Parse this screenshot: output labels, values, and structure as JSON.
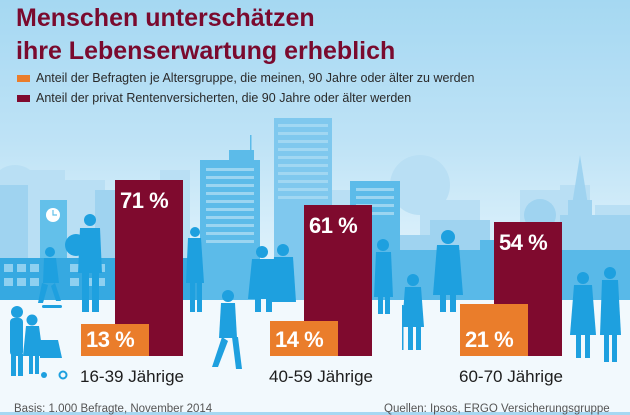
{
  "title": {
    "line1": "Menschen unterschätzen",
    "line2": "ihre Lebenserwartung erheblich"
  },
  "colors": {
    "title": "#7a0a2e",
    "series_believe": "#ea7d2b",
    "series_actual": "#7f0a2e",
    "silhouette": "#1ea0df",
    "silhouette_light": "#8fcdee"
  },
  "chart_data": {
    "type": "bar",
    "title": "Menschen unterschätzen ihre Lebenserwartung erheblich",
    "xlabel": "",
    "ylabel": "",
    "ylim": [
      0,
      100
    ],
    "unit": "%",
    "grid": false,
    "legend_position": "top-left",
    "categories": [
      "16-39 Jährige",
      "40-59 Jährige",
      "60-70 Jährige"
    ],
    "series": [
      {
        "name": "Anteil der Befragten je Altersgruppe, die meinen, 90 Jahre oder älter zu werden",
        "color": "#ea7d2b",
        "values": [
          13,
          14,
          21
        ],
        "labels": [
          "13 %",
          "14 %",
          "21 %"
        ]
      },
      {
        "name": "Anteil der privat Rentenversicherten, die 90 Jahre oder älter werden",
        "color": "#7f0a2e",
        "values": [
          71,
          61,
          54
        ],
        "labels": [
          "71 %",
          "61 %",
          "54 %"
        ]
      }
    ]
  },
  "footer": {
    "basis": "Basis: 1.000 Befragte, November 2014",
    "sources": "Quellen: Ipsos, ERGO Versicherungsgruppe"
  }
}
